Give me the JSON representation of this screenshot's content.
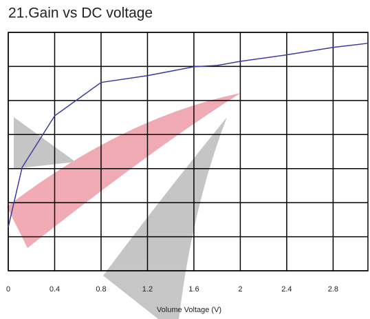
{
  "chart_data": {
    "type": "line",
    "title": "21.Gain vs DC voltage",
    "x_label": "Volume Voltage (V)",
    "x": [
      0,
      0.12,
      0.4,
      0.8,
      1.2,
      1.6,
      1.8,
      2,
      2.4,
      2.8,
      3.1
    ],
    "series": [
      {
        "color": "#3a3aa0",
        "values": [
          1.28,
          3.04,
          4.55,
          5.53,
          5.73,
          5.99,
          6.03,
          6.15,
          6.34,
          6.56,
          6.68
        ]
      }
    ],
    "xlim": [
      0,
      3.1
    ],
    "xticks": [
      0,
      0.4,
      0.8,
      1.2,
      1.6,
      2,
      2.4,
      2.8
    ],
    "ylim": [
      0,
      7
    ],
    "yticks": [
      0,
      1,
      2,
      3,
      4,
      5,
      6,
      7
    ],
    "grid": true
  }
}
